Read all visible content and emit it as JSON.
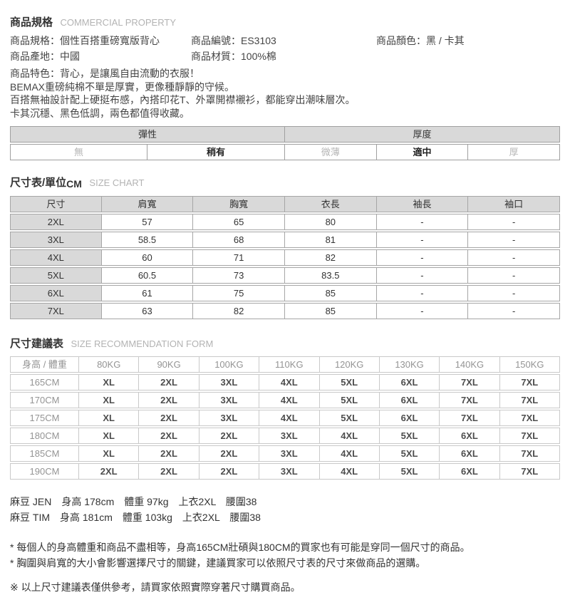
{
  "ui": {
    "colon": "："
  },
  "colors": {
    "table_header_bg": "#d9d9d9",
    "spec_table_border": "#a6a6a6",
    "recommendation_table_border": "#c9c9c9",
    "muted_text": "#b5b5b5",
    "dark_text": "#333333",
    "section_en_text": "#b3b3b3"
  },
  "product": {
    "title_zh": "商品規格",
    "title_en": "COMMERCIAL PROPERTY",
    "rows": [
      [
        {
          "label": "商品規格",
          "value": "個性百搭重磅寬版背心"
        },
        {
          "label": "商品編號",
          "value": "ES3103"
        },
        {
          "label": "商品顏色",
          "value": "黑 / 卡其"
        }
      ],
      [
        {
          "label": "商品產地",
          "value": "中國"
        },
        {
          "label": "商品材質",
          "value": "100%棉"
        }
      ]
    ],
    "features": [
      "商品特色：背心，是讓風自由流動的衣服！",
      "BEMAX重磅純棉不單是厚實，更像種靜靜的守候。",
      "百搭無袖設計配上硬挺布感，內搭印花T、外罩開襟襯衫，都能穿出潮味層次。",
      "卡其沉穩、黑色低調，兩色都值得收藏。"
    ]
  },
  "attributes": {
    "groups": [
      {
        "label": "彈性"
      },
      {
        "label": "厚度"
      }
    ],
    "options": [
      {
        "label": "無",
        "selected": false
      },
      {
        "label": "稍有",
        "selected": true
      },
      {
        "label": "微薄",
        "selected": false
      },
      {
        "label": "適中",
        "selected": true
      },
      {
        "label": "厚",
        "selected": false
      }
    ]
  },
  "size_chart": {
    "title_zh": "尺寸表/單位",
    "title_unit": "CM",
    "title_en": "SIZE CHART",
    "headers": [
      "尺寸",
      "肩寬",
      "胸寬",
      "衣長",
      "袖長",
      "袖口"
    ],
    "rows": [
      [
        "2XL",
        "57",
        "65",
        "80",
        "-",
        "-"
      ],
      [
        "3XL",
        "58.5",
        "68",
        "81",
        "-",
        "-"
      ],
      [
        "4XL",
        "60",
        "71",
        "82",
        "-",
        "-"
      ],
      [
        "5XL",
        "60.5",
        "73",
        "83.5",
        "-",
        "-"
      ],
      [
        "6XL",
        "61",
        "75",
        "85",
        "-",
        "-"
      ],
      [
        "7XL",
        "63",
        "82",
        "85",
        "-",
        "-"
      ]
    ]
  },
  "size_recommendation": {
    "title_zh": "尺寸建議表",
    "title_en": "SIZE RECOMMENDATION FORM",
    "headers": [
      "身高 / 體重",
      "80KG",
      "90KG",
      "100KG",
      "110KG",
      "120KG",
      "130KG",
      "140KG",
      "150KG"
    ],
    "rows": [
      [
        "165CM",
        "XL",
        "2XL",
        "3XL",
        "4XL",
        "5XL",
        "6XL",
        "7XL",
        "7XL"
      ],
      [
        "170CM",
        "XL",
        "2XL",
        "3XL",
        "4XL",
        "5XL",
        "6XL",
        "7XL",
        "7XL"
      ],
      [
        "175CM",
        "XL",
        "2XL",
        "3XL",
        "4XL",
        "5XL",
        "6XL",
        "7XL",
        "7XL"
      ],
      [
        "180CM",
        "XL",
        "2XL",
        "2XL",
        "3XL",
        "4XL",
        "5XL",
        "6XL",
        "7XL"
      ],
      [
        "185CM",
        "XL",
        "2XL",
        "2XL",
        "3XL",
        "4XL",
        "5XL",
        "6XL",
        "7XL"
      ],
      [
        "190CM",
        "2XL",
        "2XL",
        "2XL",
        "3XL",
        "4XL",
        "5XL",
        "6XL",
        "7XL"
      ]
    ]
  },
  "models": [
    "麻豆 JEN　身高 178cm　體重 97kg　上衣2XL　腰圍38",
    "麻豆 TIM　身高 181cm　體重 103kg　上衣2XL　腰圍38"
  ],
  "notes": [
    "* 每個人的身高體重和商品不盡相等，身高165CM壯碩與180CM的買家也有可能是穿同一個尺寸的商品。",
    "* 胸圍與肩寬的大小會影響選擇尺寸的關鍵，建議買家可以依照尺寸表的尺寸來做商品的選購。",
    "※ 以上尺寸建議表僅供參考，請買家依照實際穿著尺寸購買商品。"
  ]
}
